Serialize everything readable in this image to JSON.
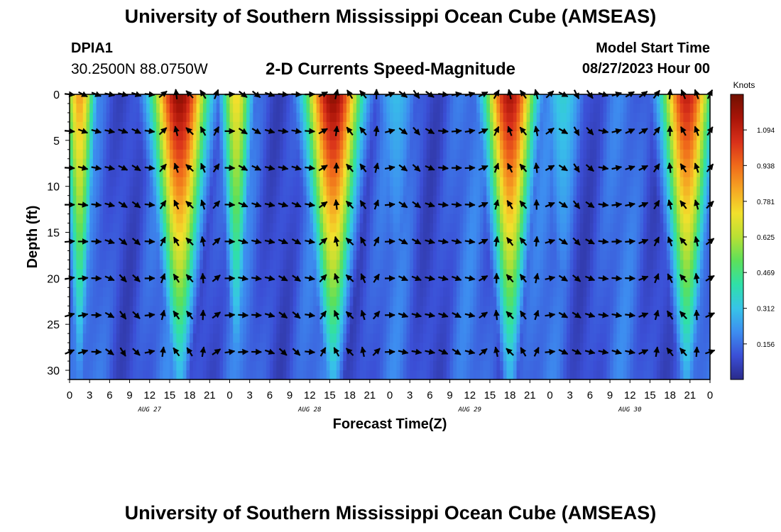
{
  "header": {
    "title": "University of Southern Mississippi Ocean Cube (AMSEAS)",
    "station_id": "DPIA1",
    "station_coords": "30.2500N  88.0750W",
    "subtitle": "2-D Currents Speed-Magnitude",
    "model_start_label": "Model Start Time",
    "model_start_value": "08/27/2023 Hour 00"
  },
  "footer": {
    "title": "University of Southern Mississippi Ocean Cube (AMSEAS)"
  },
  "chart_data": {
    "type": "heatmap",
    "title": "2-D Currents Speed-Magnitude",
    "xlabel": "Forecast Time(Z)",
    "ylabel": "Depth (ft)",
    "x_hours": [
      0,
      96
    ],
    "ylim": [
      0,
      31
    ],
    "x_ticks": [
      "0",
      "3",
      "6",
      "9",
      "12",
      "15",
      "18",
      "21",
      "0",
      "3",
      "6",
      "9",
      "12",
      "15",
      "18",
      "21",
      "0",
      "3",
      "6",
      "9",
      "12",
      "15",
      "18",
      "21",
      "0",
      "3",
      "6",
      "9",
      "12",
      "15",
      "18",
      "21",
      "0"
    ],
    "date_labels": [
      {
        "hour": 12,
        "label": "AUG 27"
      },
      {
        "hour": 36,
        "label": "AUG 28"
      },
      {
        "hour": 60,
        "label": "AUG 29"
      },
      {
        "hour": 84,
        "label": "AUG 30"
      }
    ],
    "y_ticks": [
      0,
      5,
      10,
      15,
      20,
      25,
      30
    ],
    "colorbar": {
      "label": "Knots",
      "ticks": [
        0.156,
        0.312,
        0.469,
        0.625,
        0.781,
        0.938,
        1.094
      ],
      "range": [
        0,
        1.25
      ],
      "colors": [
        "#2a2a8a",
        "#3b4fd6",
        "#3d8ef0",
        "#37c4e8",
        "#2fe0a8",
        "#5de05a",
        "#b8e034",
        "#f2e02c",
        "#f5a623",
        "#f06a1a",
        "#d8301a",
        "#a81408",
        "#701000"
      ]
    },
    "speed_peaks": [
      {
        "hour": 1.5,
        "peak": 0.85,
        "width": 2.2
      },
      {
        "hour": 16.5,
        "peak": 1.2,
        "width": 4.0
      },
      {
        "hour": 25.0,
        "peak": 0.75,
        "width": 2.2
      },
      {
        "hour": 39.5,
        "peak": 1.2,
        "width": 4.0
      },
      {
        "hour": 49.0,
        "peak": 0.3,
        "width": 3.0
      },
      {
        "hour": 66.0,
        "peak": 1.15,
        "width": 3.6
      },
      {
        "hour": 74.0,
        "peak": 0.35,
        "width": 3.0
      },
      {
        "hour": 92.5,
        "peak": 1.1,
        "width": 3.6
      }
    ],
    "arrow_depths": [
      0,
      4,
      8,
      12,
      16,
      20,
      24,
      28
    ]
  }
}
